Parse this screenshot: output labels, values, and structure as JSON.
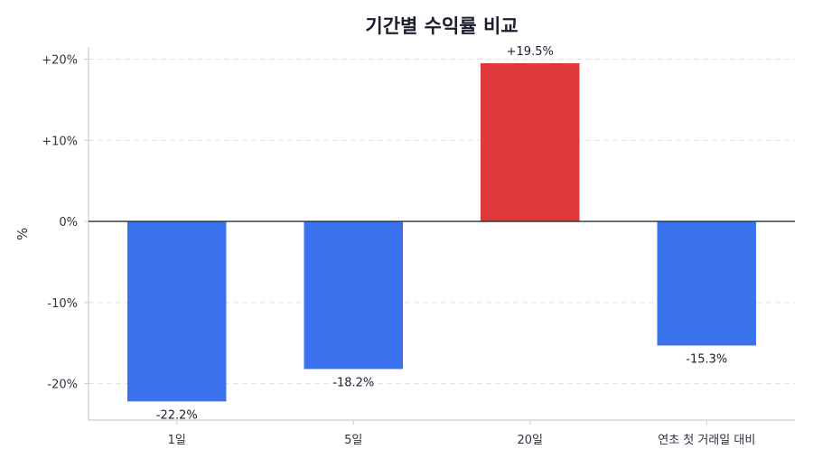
{
  "chart_data": {
    "type": "bar",
    "title": "기간별 수익률 비교",
    "xlabel": "",
    "ylabel": "%",
    "categories": [
      "1일",
      "5일",
      "20일",
      "연초 첫 거래일 대비"
    ],
    "values": [
      -22.2,
      -18.2,
      19.5,
      -15.3
    ],
    "value_labels": [
      "-22.2%",
      "-18.2%",
      "+19.5%",
      "-15.3%"
    ],
    "ylim": [
      -24.5,
      21.5
    ],
    "yticks": [
      20,
      10,
      0,
      -10,
      -20
    ],
    "ytick_labels": [
      "+20%",
      "+10%",
      "0%",
      "-10%",
      "-20%"
    ],
    "grid": true,
    "colors": {
      "positive": "#e0393b",
      "negative": "#3b73ee"
    }
  }
}
